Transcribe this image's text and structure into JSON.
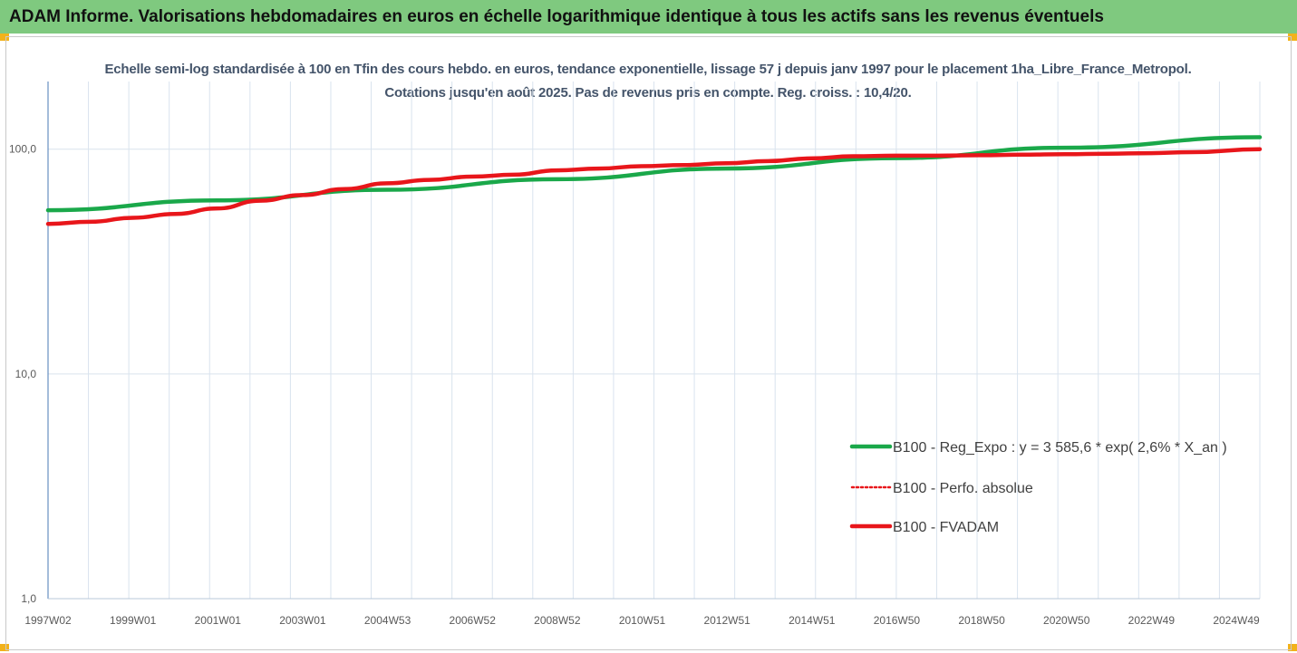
{
  "banner": {
    "title": "ADAM Informe. Valorisations hebdomadaires en euros en échelle logarithmique identique à tous les actifs sans les revenus éventuels"
  },
  "colors": {
    "banner_bg": "#7fc97f",
    "trend": "#1aa84a",
    "fvadam": "#e8161b",
    "perf": "#e8161b",
    "grid": "#d9e3ee"
  },
  "chart_data": {
    "type": "line",
    "title": "Echelle semi-log standardisée à 100 en Tfin des cours hebdo. en euros, tendance exponentielle, lissage 57 j depuis janv 1997 pour le placement 1ha_Libre_France_Metropol. Cotations jusqu'en août 2025. Pas de revenus pris en compte. Reg. croiss. : 10,4/20.",
    "y_scale": "log",
    "ylim": [
      1,
      200
    ],
    "y_ticks": [
      "1,0",
      "10,0",
      "100,0"
    ],
    "x_tick_labels": [
      "1997W02",
      "1999W01",
      "2001W01",
      "2003W01",
      "2004W53",
      "2006W52",
      "2008W52",
      "2010W51",
      "2012W51",
      "2014W51",
      "2016W50",
      "2018W50",
      "2020W50",
      "2022W49",
      "2024W49"
    ],
    "x_range": [
      1997.0,
      2025.6
    ],
    "grid": "vertical",
    "legend_position": "right",
    "series": [
      {
        "name": "B100 - Reg_Expo : y = 3 585,6 * exp( 2,6% *  X_an )",
        "style": "solid-thick",
        "color": "#1aa84a",
        "points": [
          [
            1997.0,
            53.5
          ],
          [
            2001.0,
            59.2
          ],
          [
            2005.0,
            66.0
          ],
          [
            2009.0,
            73.5
          ],
          [
            2013.0,
            82.0
          ],
          [
            2017.0,
            91.2
          ],
          [
            2021.0,
            101.5
          ],
          [
            2025.6,
            113.0
          ]
        ]
      },
      {
        "name": "B100 - Perfo. absolue",
        "style": "dotted",
        "color": "#e8161b",
        "points": [
          [
            1997.0,
            46.5
          ],
          [
            1998.0,
            47.5
          ],
          [
            1999.0,
            49.5
          ],
          [
            2000.0,
            51.5
          ],
          [
            2001.0,
            54.5
          ],
          [
            2002.0,
            59.0
          ],
          [
            2003.0,
            62.5
          ],
          [
            2004.0,
            66.5
          ],
          [
            2005.0,
            70.5
          ],
          [
            2006.0,
            73.0
          ],
          [
            2007.0,
            75.5
          ],
          [
            2008.0,
            77.0
          ],
          [
            2009.0,
            80.5
          ],
          [
            2010.0,
            82.0
          ],
          [
            2011.0,
            84.0
          ],
          [
            2012.0,
            85.0
          ],
          [
            2013.0,
            86.5
          ],
          [
            2014.0,
            88.5
          ],
          [
            2015.0,
            91.0
          ],
          [
            2016.0,
            93.0
          ],
          [
            2017.0,
            93.5
          ],
          [
            2018.0,
            93.5
          ],
          [
            2019.0,
            94.0
          ],
          [
            2020.0,
            94.5
          ],
          [
            2021.0,
            95.0
          ],
          [
            2022.0,
            95.5
          ],
          [
            2023.0,
            96.0
          ],
          [
            2024.0,
            97.0
          ],
          [
            2025.6,
            100.0
          ]
        ]
      },
      {
        "name": "B100 - FVADAM",
        "style": "solid-thick",
        "color": "#e8161b",
        "points": [
          [
            1997.0,
            46.5
          ],
          [
            1998.0,
            47.5
          ],
          [
            1999.0,
            49.5
          ],
          [
            2000.0,
            51.5
          ],
          [
            2001.0,
            54.5
          ],
          [
            2002.0,
            59.0
          ],
          [
            2003.0,
            62.5
          ],
          [
            2004.0,
            66.5
          ],
          [
            2005.0,
            70.5
          ],
          [
            2006.0,
            73.0
          ],
          [
            2007.0,
            75.5
          ],
          [
            2008.0,
            77.0
          ],
          [
            2009.0,
            80.5
          ],
          [
            2010.0,
            82.0
          ],
          [
            2011.0,
            84.0
          ],
          [
            2012.0,
            85.0
          ],
          [
            2013.0,
            86.5
          ],
          [
            2014.0,
            88.5
          ],
          [
            2015.0,
            91.0
          ],
          [
            2016.0,
            93.0
          ],
          [
            2017.0,
            93.5
          ],
          [
            2018.0,
            93.5
          ],
          [
            2019.0,
            94.0
          ],
          [
            2020.0,
            94.5
          ],
          [
            2021.0,
            95.0
          ],
          [
            2022.0,
            95.5
          ],
          [
            2023.0,
            96.0
          ],
          [
            2024.0,
            97.0
          ],
          [
            2025.6,
            100.0
          ]
        ]
      }
    ]
  }
}
